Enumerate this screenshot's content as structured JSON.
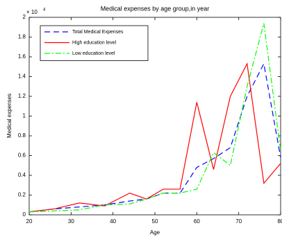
{
  "chart_data": {
    "type": "line",
    "title": "Medical expenses by age group,in year",
    "x_label": "Age",
    "y_label": "Medical expenses",
    "y_multiplier": "× 10",
    "y_multiplier_exp": "4",
    "x": [
      20,
      26,
      32,
      38,
      44,
      48,
      52,
      56,
      60,
      64,
      68,
      72,
      76,
      80
    ],
    "series": [
      {
        "name": "Total Medical Expenses",
        "color": "#0000ff",
        "dash": "8,5",
        "values": [
          0.03,
          0.06,
          0.08,
          0.1,
          0.14,
          0.16,
          0.22,
          0.22,
          0.48,
          0.57,
          0.68,
          1.2,
          1.53,
          0.58
        ]
      },
      {
        "name": "High education level",
        "color": "#ff0000",
        "dash": "",
        "values": [
          0.03,
          0.06,
          0.12,
          0.09,
          0.22,
          0.16,
          0.26,
          0.26,
          1.14,
          0.46,
          1.2,
          1.53,
          0.32,
          0.52
        ]
      },
      {
        "name": "Low education level",
        "color": "#00ff00",
        "dash": "8,3,2,3",
        "values": [
          0.03,
          0.04,
          0.05,
          0.1,
          0.11,
          0.16,
          0.22,
          0.22,
          0.26,
          0.63,
          0.5,
          1.3,
          1.94,
          0.65
        ]
      }
    ],
    "xlim": [
      20,
      80
    ],
    "xticks": [
      20,
      30,
      40,
      50,
      60,
      70,
      80
    ],
    "ylim": [
      0,
      2
    ],
    "yticks": [
      0,
      0.2,
      0.4,
      0.6,
      0.8,
      1,
      1.2,
      1.4,
      1.6,
      1.8,
      2
    ],
    "legend": "upper left",
    "grid": false
  }
}
